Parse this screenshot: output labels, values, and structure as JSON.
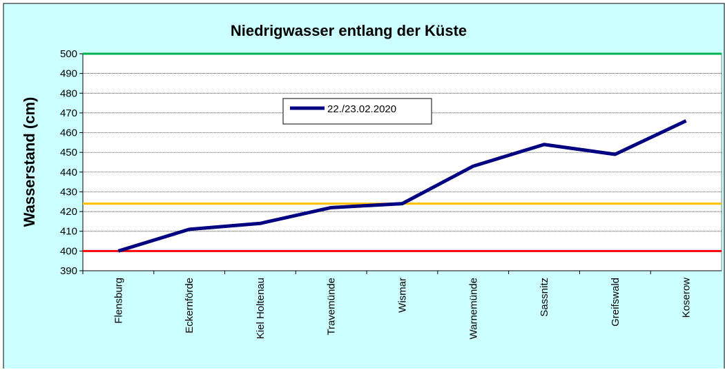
{
  "chart_data": {
    "type": "line",
    "title": "Niedrigwasser entlang der Küste",
    "y_label": "Wasserstand (cm)",
    "categories": [
      "Flensburg",
      "Eckernförde",
      "Kiel Holtenau",
      "Travemünde",
      "Wismar",
      "Warnemünde",
      "Sassnitz",
      "Greifswald",
      "Koserow"
    ],
    "series": [
      {
        "name": "22./23.02.2020",
        "color": "#000080",
        "values": [
          400,
          411,
          414,
          422,
          424,
          443,
          454,
          449,
          466
        ]
      }
    ],
    "reference_lines": [
      {
        "value": 500,
        "color": "#00b050"
      },
      {
        "value": 424,
        "color": "#ffc000"
      },
      {
        "value": 400,
        "color": "#ff0000"
      }
    ],
    "ylim": [
      390,
      500
    ],
    "yticks": [
      390,
      400,
      410,
      420,
      430,
      440,
      450,
      460,
      470,
      480,
      490,
      500
    ],
    "grid": true,
    "legend": "top-center"
  }
}
